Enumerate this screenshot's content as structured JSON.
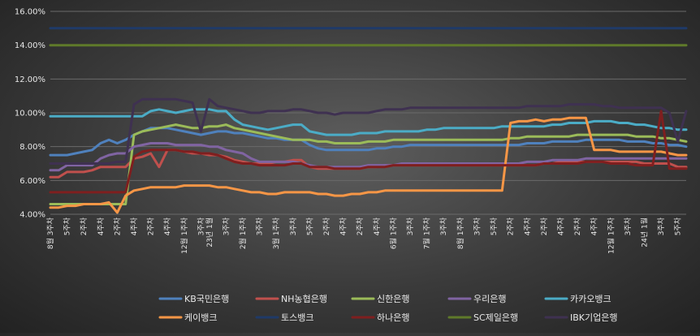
{
  "chart_data": {
    "type": "line",
    "title": "",
    "xlabel": "",
    "ylabel": "",
    "ylim": [
      0.04,
      0.16
    ],
    "yticks": [
      "4.00%",
      "6.00%",
      "8.00%",
      "10.00%",
      "12.00%",
      "14.00%",
      "16.00%"
    ],
    "grid": "horizontal",
    "legend_position": "bottom",
    "x_tick_labels": [
      {
        "i": 0,
        "text": "8월 3주차"
      },
      {
        "i": 2,
        "text": "5주차"
      },
      {
        "i": 4,
        "text": "2주차"
      },
      {
        "i": 6,
        "text": "4주차"
      },
      {
        "i": 8,
        "text": "2주차"
      },
      {
        "i": 10,
        "text": "4주차"
      },
      {
        "i": 12,
        "text": "2주차"
      },
      {
        "i": 14,
        "text": "4주차"
      },
      {
        "i": 16,
        "text": "12월 1주차"
      },
      {
        "i": 18,
        "text": "3주차"
      },
      {
        "i": 19,
        "text": "23년 1월"
      },
      {
        "i": 21,
        "text": "3주차"
      },
      {
        "i": 23,
        "text": "2월 1주차"
      },
      {
        "i": 25,
        "text": "3주차"
      },
      {
        "i": 27,
        "text": "3월 1주차"
      },
      {
        "i": 29,
        "text": "3주차"
      },
      {
        "i": 31,
        "text": "5주차"
      },
      {
        "i": 33,
        "text": "2주차"
      },
      {
        "i": 35,
        "text": "4주차"
      },
      {
        "i": 37,
        "text": "2주차"
      },
      {
        "i": 39,
        "text": "4주차"
      },
      {
        "i": 41,
        "text": "6월 1주차"
      },
      {
        "i": 43,
        "text": "3주차"
      },
      {
        "i": 45,
        "text": "7월 1주차"
      },
      {
        "i": 47,
        "text": "3주차"
      },
      {
        "i": 49,
        "text": "8월 1주차"
      },
      {
        "i": 51,
        "text": "3주차"
      },
      {
        "i": 53,
        "text": "5주차"
      },
      {
        "i": 55,
        "text": "2주차"
      },
      {
        "i": 57,
        "text": "4주차"
      },
      {
        "i": 59,
        "text": "2주차"
      },
      {
        "i": 61,
        "text": "4주차"
      },
      {
        "i": 63,
        "text": "2주차"
      },
      {
        "i": 65,
        "text": "4주차"
      },
      {
        "i": 67,
        "text": "12월 1주차"
      },
      {
        "i": 69,
        "text": "3주차"
      },
      {
        "i": 71,
        "text": "24년 1월"
      },
      {
        "i": 73,
        "text": "3주차"
      },
      {
        "i": 75,
        "text": "5주차"
      }
    ],
    "series": [
      {
        "name": "KB국민은행",
        "color": "#4f81bd",
        "values": [
          0.075,
          0.075,
          0.075,
          0.076,
          0.077,
          0.078,
          0.082,
          0.084,
          0.082,
          0.084,
          0.087,
          0.089,
          0.091,
          0.091,
          0.091,
          0.09,
          0.089,
          0.088,
          0.087,
          0.088,
          0.089,
          0.089,
          0.088,
          0.088,
          0.087,
          0.086,
          0.085,
          0.085,
          0.084,
          0.084,
          0.084,
          0.081,
          0.079,
          0.078,
          0.078,
          0.078,
          0.078,
          0.078,
          0.078,
          0.079,
          0.079,
          0.08,
          0.08,
          0.081,
          0.081,
          0.081,
          0.081,
          0.081,
          0.081,
          0.081,
          0.081,
          0.081,
          0.081,
          0.081,
          0.081,
          0.081,
          0.081,
          0.082,
          0.082,
          0.082,
          0.083,
          0.083,
          0.083,
          0.083,
          0.084,
          0.084,
          0.084,
          0.084,
          0.084,
          0.083,
          0.083,
          0.083,
          0.082,
          0.082,
          0.081,
          0.081,
          0.08
        ]
      },
      {
        "name": "NH농협은행",
        "color": "#c0504d",
        "values": [
          0.062,
          0.062,
          0.065,
          0.065,
          0.065,
          0.066,
          0.068,
          0.068,
          0.068,
          0.068,
          0.073,
          0.074,
          0.076,
          0.068,
          0.078,
          0.078,
          0.077,
          0.076,
          0.076,
          0.075,
          0.075,
          0.074,
          0.072,
          0.071,
          0.07,
          0.07,
          0.07,
          0.071,
          0.071,
          0.072,
          0.072,
          0.068,
          0.067,
          0.067,
          0.067,
          0.067,
          0.067,
          0.067,
          0.068,
          0.068,
          0.069,
          0.069,
          0.069,
          0.069,
          0.069,
          0.069,
          0.069,
          0.069,
          0.069,
          0.069,
          0.069,
          0.069,
          0.069,
          0.069,
          0.069,
          0.069,
          0.069,
          0.069,
          0.069,
          0.07,
          0.07,
          0.071,
          0.071,
          0.071,
          0.071,
          0.071,
          0.071,
          0.071,
          0.071,
          0.071,
          0.071,
          0.07,
          0.07,
          0.07,
          0.07,
          0.068,
          0.068
        ]
      },
      {
        "name": "신한은행",
        "color": "#9bbb59",
        "values": [
          0.046,
          0.046,
          0.046,
          0.046,
          0.046,
          0.046,
          0.046,
          0.046,
          0.046,
          0.046,
          0.087,
          0.089,
          0.09,
          0.091,
          0.092,
          0.093,
          0.092,
          0.091,
          0.091,
          0.092,
          0.092,
          0.093,
          0.091,
          0.09,
          0.089,
          0.088,
          0.087,
          0.086,
          0.085,
          0.084,
          0.084,
          0.084,
          0.083,
          0.083,
          0.082,
          0.082,
          0.082,
          0.082,
          0.083,
          0.083,
          0.083,
          0.084,
          0.084,
          0.084,
          0.084,
          0.084,
          0.084,
          0.084,
          0.084,
          0.084,
          0.084,
          0.084,
          0.084,
          0.084,
          0.084,
          0.085,
          0.085,
          0.086,
          0.086,
          0.086,
          0.086,
          0.086,
          0.086,
          0.087,
          0.087,
          0.087,
          0.087,
          0.087,
          0.087,
          0.087,
          0.086,
          0.086,
          0.086,
          0.085,
          0.085,
          0.084,
          0.083
        ]
      },
      {
        "name": "우리은행",
        "color": "#8064a2",
        "values": [
          0.066,
          0.066,
          0.069,
          0.069,
          0.069,
          0.069,
          0.073,
          0.075,
          0.076,
          0.076,
          0.08,
          0.081,
          0.082,
          0.082,
          0.082,
          0.081,
          0.081,
          0.081,
          0.081,
          0.08,
          0.08,
          0.078,
          0.077,
          0.076,
          0.073,
          0.071,
          0.071,
          0.071,
          0.071,
          0.071,
          0.07,
          0.069,
          0.068,
          0.068,
          0.068,
          0.068,
          0.068,
          0.068,
          0.069,
          0.069,
          0.069,
          0.069,
          0.07,
          0.07,
          0.07,
          0.07,
          0.07,
          0.07,
          0.07,
          0.07,
          0.07,
          0.07,
          0.07,
          0.07,
          0.07,
          0.07,
          0.07,
          0.071,
          0.071,
          0.071,
          0.072,
          0.072,
          0.072,
          0.072,
          0.073,
          0.073,
          0.073,
          0.073,
          0.073,
          0.073,
          0.073,
          0.073,
          0.073,
          0.073,
          0.073,
          0.073,
          0.073
        ]
      },
      {
        "name": "카카오뱅크",
        "color": "#4bacc6",
        "values": [
          0.098,
          0.098,
          0.098,
          0.098,
          0.098,
          0.098,
          0.098,
          0.098,
          0.098,
          0.098,
          0.098,
          0.098,
          0.101,
          0.102,
          0.101,
          0.1,
          0.101,
          0.102,
          0.102,
          0.102,
          0.101,
          0.101,
          0.096,
          0.093,
          0.092,
          0.091,
          0.09,
          0.091,
          0.092,
          0.093,
          0.093,
          0.089,
          0.088,
          0.087,
          0.087,
          0.087,
          0.087,
          0.088,
          0.088,
          0.088,
          0.089,
          0.089,
          0.089,
          0.089,
          0.089,
          0.09,
          0.09,
          0.091,
          0.091,
          0.091,
          0.091,
          0.091,
          0.091,
          0.091,
          0.092,
          0.092,
          0.092,
          0.092,
          0.092,
          0.092,
          0.093,
          0.093,
          0.094,
          0.094,
          0.094,
          0.095,
          0.095,
          0.095,
          0.094,
          0.094,
          0.093,
          0.093,
          0.092,
          0.091,
          0.091,
          0.09,
          0.09
        ]
      },
      {
        "name": "케이뱅크",
        "color": "#f79646",
        "values": [
          0.044,
          0.044,
          0.045,
          0.045,
          0.046,
          0.046,
          0.046,
          0.047,
          0.041,
          0.051,
          0.054,
          0.055,
          0.056,
          0.056,
          0.056,
          0.056,
          0.057,
          0.057,
          0.057,
          0.057,
          0.056,
          0.056,
          0.055,
          0.054,
          0.053,
          0.053,
          0.052,
          0.052,
          0.053,
          0.053,
          0.053,
          0.053,
          0.052,
          0.052,
          0.051,
          0.051,
          0.052,
          0.052,
          0.053,
          0.053,
          0.054,
          0.054,
          0.054,
          0.054,
          0.054,
          0.054,
          0.054,
          0.054,
          0.054,
          0.054,
          0.054,
          0.054,
          0.054,
          0.054,
          0.054,
          0.094,
          0.095,
          0.095,
          0.096,
          0.095,
          0.096,
          0.096,
          0.097,
          0.097,
          0.097,
          0.078,
          0.078,
          0.078,
          0.077,
          0.077,
          0.077,
          0.077,
          0.077,
          0.077,
          0.076,
          0.075,
          0.075
        ]
      },
      {
        "name": "토스뱅크",
        "color": "#1f3a68",
        "values": [
          0.15,
          0.15,
          0.15,
          0.15,
          0.15,
          0.15,
          0.15,
          0.15,
          0.15,
          0.15,
          0.15,
          0.15,
          0.15,
          0.15,
          0.15,
          0.15,
          0.15,
          0.15,
          0.15,
          0.15,
          0.15,
          0.15,
          0.15,
          0.15,
          0.15,
          0.15,
          0.15,
          0.15,
          0.15,
          0.15,
          0.15,
          0.15,
          0.15,
          0.15,
          0.15,
          0.15,
          0.15,
          0.15,
          0.15,
          0.15,
          0.15,
          0.15,
          0.15,
          0.15,
          0.15,
          0.15,
          0.15,
          0.15,
          0.15,
          0.15,
          0.15,
          0.15,
          0.15,
          0.15,
          0.15,
          0.15,
          0.15,
          0.15,
          0.15,
          0.15,
          0.15,
          0.15,
          0.15,
          0.15,
          0.15,
          0.15,
          0.15,
          0.15,
          0.15,
          0.15,
          0.15,
          0.15,
          0.15,
          0.15,
          0.15,
          0.15,
          0.15
        ]
      },
      {
        "name": "하나은행",
        "color": "#7f1f1f",
        "values": [
          0.053,
          0.053,
          0.053,
          0.053,
          0.053,
          0.053,
          0.053,
          0.053,
          0.053,
          0.053,
          0.074,
          0.077,
          0.078,
          0.078,
          0.078,
          0.078,
          0.077,
          0.077,
          0.076,
          0.076,
          0.075,
          0.073,
          0.071,
          0.07,
          0.07,
          0.069,
          0.069,
          0.069,
          0.069,
          0.07,
          0.07,
          0.068,
          0.068,
          0.068,
          0.067,
          0.067,
          0.067,
          0.067,
          0.068,
          0.068,
          0.068,
          0.069,
          0.069,
          0.069,
          0.069,
          0.069,
          0.069,
          0.069,
          0.069,
          0.069,
          0.069,
          0.069,
          0.069,
          0.069,
          0.069,
          0.069,
          0.069,
          0.069,
          0.069,
          0.07,
          0.07,
          0.07,
          0.07,
          0.07,
          0.071,
          0.071,
          0.071,
          0.07,
          0.07,
          0.07,
          0.069,
          0.069,
          0.069,
          0.101,
          0.067,
          0.067,
          0.067
        ]
      },
      {
        "name": "SC제일은행",
        "color": "#5f7a2a",
        "values": [
          0.14,
          0.14,
          0.14,
          0.14,
          0.14,
          0.14,
          0.14,
          0.14,
          0.14,
          0.14,
          0.14,
          0.14,
          0.14,
          0.14,
          0.14,
          0.14,
          0.14,
          0.14,
          0.14,
          0.14,
          0.14,
          0.14,
          0.14,
          0.14,
          0.14,
          0.14,
          0.14,
          0.14,
          0.14,
          0.14,
          0.14,
          0.14,
          0.14,
          0.14,
          0.14,
          0.14,
          0.14,
          0.14,
          0.14,
          0.14,
          0.14,
          0.14,
          0.14,
          0.14,
          0.14,
          0.14,
          0.14,
          0.14,
          0.14,
          0.14,
          0.14,
          0.14,
          0.14,
          0.14,
          0.14,
          0.14,
          0.14,
          0.14,
          0.14,
          0.14,
          0.14,
          0.14,
          0.14,
          0.14,
          0.14,
          0.14,
          0.14,
          0.14,
          0.14,
          0.14,
          0.14,
          0.14,
          0.14,
          0.14,
          0.14,
          0.14,
          0.14
        ]
      },
      {
        "name": "IBK기업은행",
        "color": "#3f3151",
        "values": [
          0.07,
          0.07,
          0.07,
          0.07,
          0.07,
          0.07,
          0.07,
          0.07,
          0.071,
          0.071,
          0.105,
          0.108,
          0.108,
          0.108,
          0.108,
          0.108,
          0.107,
          0.106,
          0.089,
          0.108,
          0.104,
          0.103,
          0.102,
          0.101,
          0.1,
          0.1,
          0.101,
          0.101,
          0.101,
          0.102,
          0.102,
          0.101,
          0.1,
          0.1,
          0.099,
          0.1,
          0.1,
          0.1,
          0.1,
          0.101,
          0.102,
          0.102,
          0.102,
          0.103,
          0.103,
          0.103,
          0.103,
          0.103,
          0.103,
          0.103,
          0.103,
          0.103,
          0.103,
          0.103,
          0.103,
          0.103,
          0.103,
          0.104,
          0.104,
          0.104,
          0.104,
          0.104,
          0.105,
          0.105,
          0.105,
          0.105,
          0.104,
          0.104,
          0.103,
          0.103,
          0.103,
          0.103,
          0.103,
          0.103,
          0.1,
          0.083,
          0.101
        ]
      }
    ]
  }
}
